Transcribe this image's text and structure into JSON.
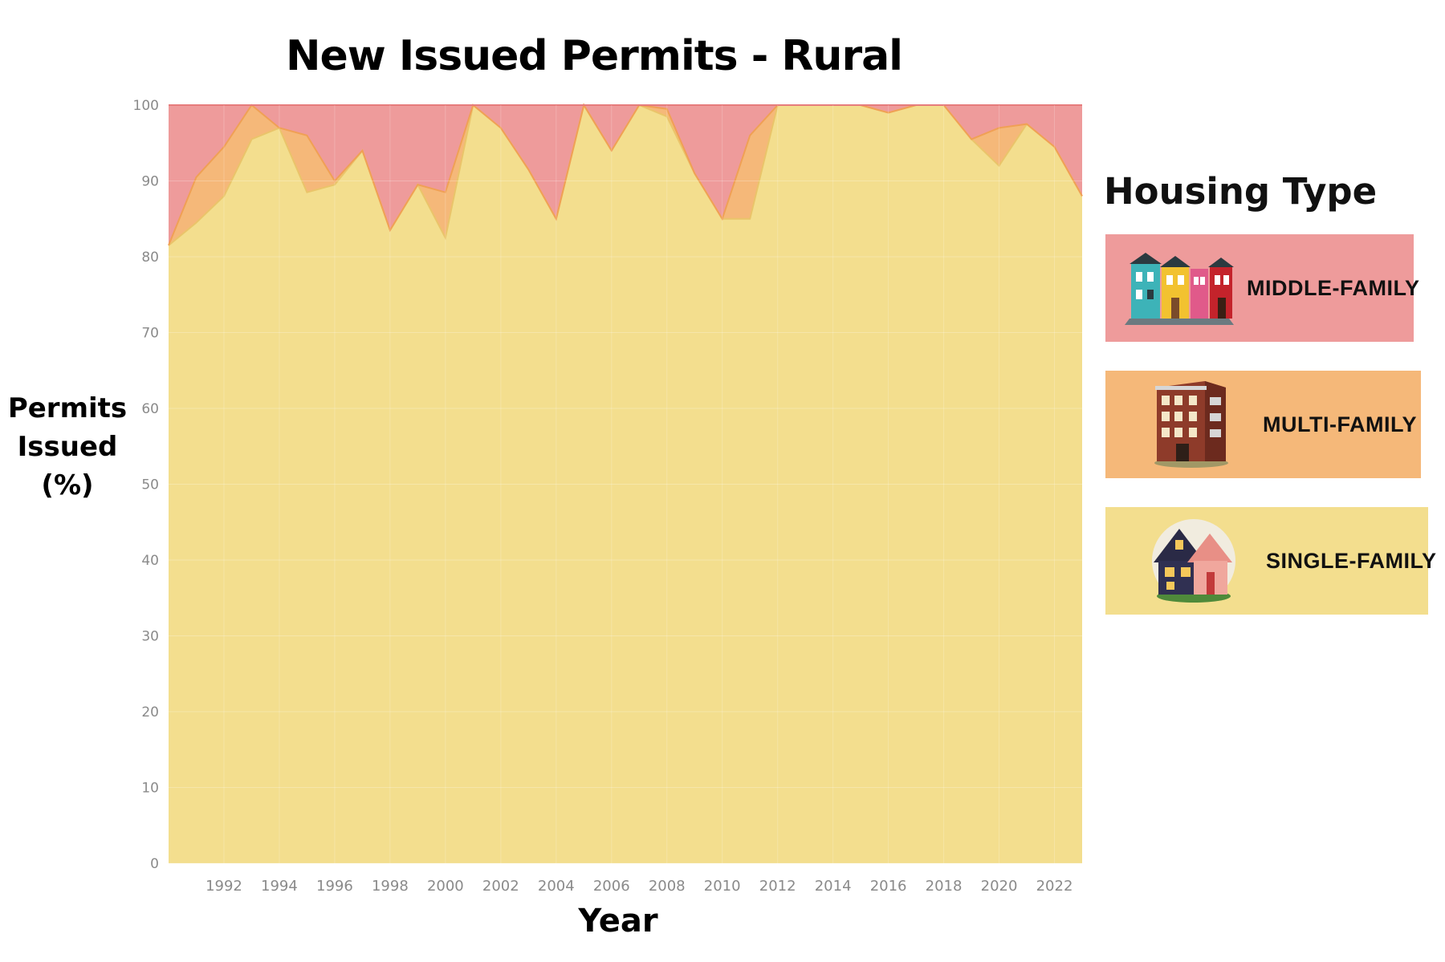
{
  "chart_data": {
    "type": "area",
    "stacked": true,
    "normalized_percent": true,
    "title": "New Issued Permits - Rural",
    "xlabel": "Year",
    "ylabel_lines": [
      "Permits",
      "Issued",
      "(%)"
    ],
    "xlim": [
      1990,
      2023
    ],
    "ylim": [
      0,
      100
    ],
    "y_ticks": [
      0,
      10,
      20,
      30,
      40,
      50,
      60,
      70,
      80,
      90,
      100
    ],
    "x_ticks": [
      1992,
      1994,
      1996,
      1998,
      2000,
      2002,
      2004,
      2006,
      2008,
      2010,
      2012,
      2014,
      2016,
      2018,
      2020,
      2022
    ],
    "grid": true,
    "x": [
      1990,
      1991,
      1992,
      1993,
      1994,
      1995,
      1996,
      1997,
      1998,
      1999,
      2000,
      2001,
      2002,
      2003,
      2004,
      2005,
      2006,
      2007,
      2008,
      2009,
      2010,
      2011,
      2012,
      2013,
      2014,
      2015,
      2016,
      2017,
      2018,
      2019,
      2020,
      2021,
      2022,
      2023
    ],
    "series": [
      {
        "name": "Single-family",
        "color": "#f3de8e",
        "values": [
          81.5,
          84.5,
          88,
          95.5,
          97,
          88.5,
          89.5,
          94,
          83.5,
          89.5,
          82.5,
          100,
          97,
          91.5,
          85,
          100,
          94,
          100,
          98.5,
          91,
          85,
          85,
          100,
          100,
          100,
          100,
          99,
          100,
          100,
          95.5,
          92,
          97.5,
          94.5,
          88
        ]
      },
      {
        "name": "Multi-family",
        "color": "#f5b879",
        "values": [
          0,
          6,
          6.5,
          4.5,
          0,
          7.5,
          0.5,
          0,
          0,
          0,
          6,
          0,
          0,
          0,
          0,
          0,
          0,
          0,
          1,
          0,
          0,
          11,
          0,
          0,
          0,
          0,
          0,
          0,
          0,
          0,
          5,
          0,
          0,
          0
        ]
      },
      {
        "name": "Middle-family",
        "color": "#ee9b9b",
        "values": [
          18.5,
          9.5,
          5.5,
          0,
          3,
          4,
          10,
          6,
          16.5,
          10.5,
          11.5,
          0,
          3,
          8.5,
          15,
          0,
          6,
          0,
          0.5,
          9,
          15,
          4,
          0,
          0,
          0,
          0,
          1,
          0,
          0,
          4.5,
          3,
          2.5,
          5.5,
          12
        ]
      }
    ],
    "legend": {
      "title": "Housing Type",
      "position": "right",
      "items": [
        {
          "label": "MIDDLE-FAMILY",
          "color": "#ee9b9b",
          "icon": "row-houses-icon"
        },
        {
          "label": "MULTI-FAMILY",
          "color": "#f5b879",
          "icon": "apartment-building-icon"
        },
        {
          "label": "SINGLE-FAMILY",
          "color": "#f3de8e",
          "icon": "house-icon"
        }
      ]
    }
  }
}
